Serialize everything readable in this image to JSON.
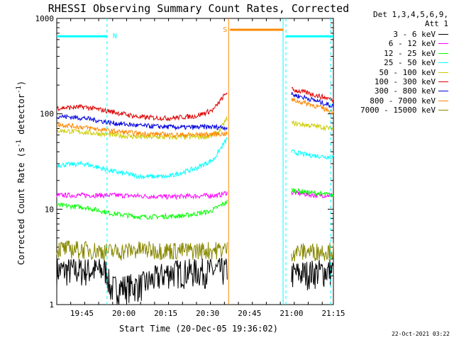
{
  "chart_data": {
    "type": "line",
    "title": "RHESSI Observing Summary Count Rates, Corrected",
    "ylabel_main": "Corrected Count Rate (s",
    "ylabel_sup1": "-1",
    "ylabel_mid": " detector",
    "ylabel_sup2": "-1",
    "ylabel_end": ")",
    "xlabel": "Start Time (20-Dec-05 19:36:02)",
    "yscale": "log",
    "ylim": [
      1,
      1000
    ],
    "xlim_minutes": [
      0,
      99
    ],
    "x_ticks": [
      {
        "label": "19:45",
        "value": 9
      },
      {
        "label": "20:00",
        "value": 24
      },
      {
        "label": "20:15",
        "value": 39
      },
      {
        "label": "20:30",
        "value": 54
      },
      {
        "label": "20:45",
        "value": 69
      },
      {
        "label": "21:00",
        "value": 84
      },
      {
        "label": "21:15",
        "value": 99
      }
    ],
    "y_ticks": [
      {
        "label": "1",
        "value": 1
      },
      {
        "label": "10",
        "value": 10
      },
      {
        "label": "100",
        "value": 100
      },
      {
        "label": "1000",
        "value": 1000
      }
    ],
    "legend_header_line1": "Det 1,3,4,5,6,9,",
    "legend_header_line2": "Att 1",
    "series": [
      {
        "name": "3 - 6 keV",
        "color": "#000000",
        "segments": [
          [
            [
              0,
              2.3
            ],
            [
              18,
              2.3
            ],
            [
              19,
              1.5
            ],
            [
              30,
              1.6
            ],
            [
              40,
              2.2
            ],
            [
              61,
              2.3
            ]
          ],
          [
            [
              84,
              2.1
            ],
            [
              99,
              2.3
            ]
          ]
        ]
      },
      {
        "name": "6 - 12 keV",
        "color": "#ff00ff",
        "segments": [
          [
            [
              0,
              14
            ],
            [
              20,
              14
            ],
            [
              40,
              13.5
            ],
            [
              58,
              14
            ],
            [
              61,
              15
            ]
          ],
          [
            [
              84,
              15
            ],
            [
              92,
              14
            ],
            [
              99,
              14
            ]
          ]
        ]
      },
      {
        "name": "12 - 25 keV",
        "color": "#00ff00",
        "segments": [
          [
            [
              0,
              11
            ],
            [
              10,
              10.5
            ],
            [
              20,
              9
            ],
            [
              30,
              8.3
            ],
            [
              45,
              8.5
            ],
            [
              55,
              9.5
            ],
            [
              61,
              12
            ]
          ],
          [
            [
              84,
              16
            ],
            [
              90,
              15
            ],
            [
              99,
              14
            ]
          ]
        ]
      },
      {
        "name": "25 - 50 keV",
        "color": "#00ffff",
        "segments": [
          [
            [
              0,
              29
            ],
            [
              10,
              30
            ],
            [
              20,
              25
            ],
            [
              30,
              22
            ],
            [
              40,
              22
            ],
            [
              50,
              27
            ],
            [
              56,
              33
            ],
            [
              61,
              55
            ]
          ],
          [
            [
              84,
              40
            ],
            [
              90,
              37
            ],
            [
              99,
              35
            ]
          ]
        ]
      },
      {
        "name": "50 - 100 keV",
        "color": "#cccc00",
        "segments": [
          [
            [
              0,
              67
            ],
            [
              10,
              64
            ],
            [
              20,
              60
            ],
            [
              30,
              57
            ],
            [
              45,
              57
            ],
            [
              55,
              58
            ],
            [
              58,
              65
            ],
            [
              61,
              90
            ]
          ],
          [
            [
              84,
              80
            ],
            [
              90,
              76
            ],
            [
              99,
              70
            ]
          ]
        ]
      },
      {
        "name": "100 - 300 keV",
        "color": "#dd0000",
        "segments": [
          [
            [
              0,
              115
            ],
            [
              10,
              118
            ],
            [
              20,
              105
            ],
            [
              30,
              92
            ],
            [
              40,
              90
            ],
            [
              50,
              95
            ],
            [
              56,
              110
            ],
            [
              61,
              170
            ]
          ],
          [
            [
              84,
              180
            ],
            [
              90,
              165
            ],
            [
              99,
              140
            ]
          ]
        ]
      },
      {
        "name": "300 - 800 keV",
        "color": "#0000dd",
        "segments": [
          [
            [
              0,
              95
            ],
            [
              10,
              90
            ],
            [
              20,
              80
            ],
            [
              30,
              75
            ],
            [
              45,
              72
            ],
            [
              55,
              73
            ],
            [
              61,
              72
            ]
          ],
          [
            [
              84,
              160
            ],
            [
              90,
              145
            ],
            [
              99,
              120
            ]
          ]
        ]
      },
      {
        "name": "800 - 7000 keV",
        "color": "#ff8800",
        "segments": [
          [
            [
              0,
              78
            ],
            [
              10,
              72
            ],
            [
              20,
              66
            ],
            [
              30,
              62
            ],
            [
              45,
              60
            ],
            [
              55,
              61
            ],
            [
              61,
              62
            ]
          ],
          [
            [
              84,
              140
            ],
            [
              90,
              128
            ],
            [
              99,
              105
            ]
          ]
        ]
      },
      {
        "name": "7000 - 15000 keV",
        "color": "#888800",
        "segments": [
          [
            [
              0,
              3.9
            ],
            [
              10,
              3.8
            ],
            [
              20,
              3.6
            ],
            [
              30,
              3.8
            ],
            [
              45,
              3.7
            ],
            [
              61,
              3.8
            ]
          ],
          [
            [
              84,
              3.6
            ],
            [
              99,
              3.7
            ]
          ]
        ]
      }
    ],
    "flag_bars": [
      {
        "label": "N",
        "color": "#00ffff",
        "x0": 0,
        "x1": 18,
        "y": 650
      },
      {
        "label": "S",
        "color": "#ff8800",
        "x0": 62,
        "x1": 81,
        "y": 760
      },
      {
        "label": "",
        "color": "#00ffff",
        "x0": 82,
        "x1": 99,
        "y": 650
      }
    ],
    "vertical_lines": [
      {
        "x": 18,
        "color": "#00ffff",
        "style": "dashed"
      },
      {
        "x": 61.5,
        "color": "#ff8800",
        "style": "solid"
      },
      {
        "x": 81,
        "color": "#00ffff",
        "style": "solid"
      },
      {
        "x": 82,
        "color": "#00ffff",
        "style": "dashed"
      },
      {
        "x": 98,
        "color": "#00ffff",
        "style": "dashed"
      }
    ],
    "footer_date": "22-Oct-2021 03:22"
  }
}
